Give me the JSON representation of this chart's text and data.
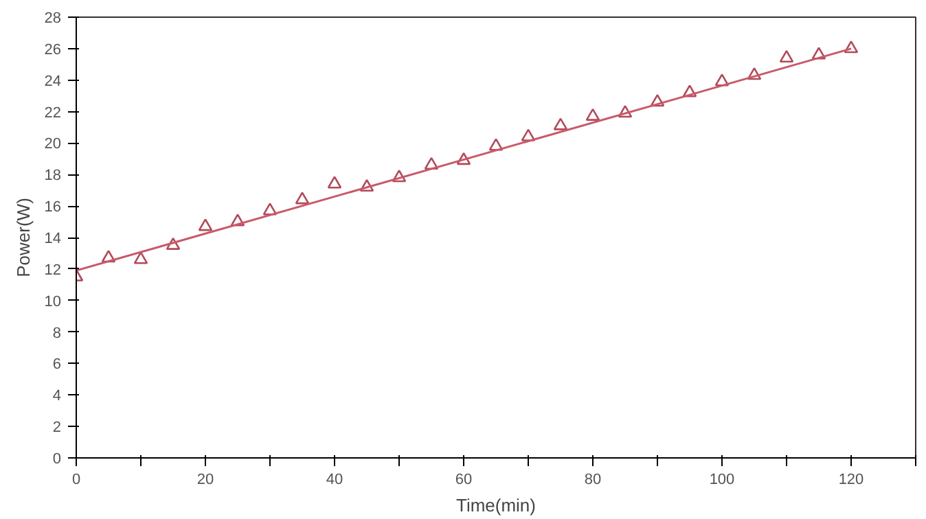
{
  "chart_data": {
    "type": "scatter",
    "xlabel": "Time(min)",
    "ylabel": "Power(W)",
    "xlim": [
      0,
      130
    ],
    "ylim": [
      0,
      28
    ],
    "xticks": [
      0,
      {
        "value": 10,
        "label": null
      },
      20,
      {
        "value": 30,
        "label": null
      },
      40,
      {
        "value": 50,
        "label": null
      },
      60,
      {
        "value": 70,
        "label": null
      },
      80,
      {
        "value": 90,
        "label": null
      },
      100,
      {
        "value": 110,
        "label": null
      },
      120,
      {
        "value": 130,
        "label": null
      }
    ],
    "yticks": [
      0,
      2,
      4,
      6,
      8,
      10,
      12,
      14,
      16,
      18,
      20,
      22,
      24,
      26,
      28
    ],
    "grid": false,
    "series": [
      {
        "marker": "triangle",
        "color": "#b04a5a",
        "x": [
          0,
          5,
          10,
          15,
          20,
          25,
          30,
          35,
          40,
          45,
          50,
          55,
          60,
          65,
          70,
          75,
          80,
          85,
          90,
          95,
          100,
          105,
          110,
          115,
          120
        ],
        "values": [
          11.5,
          12.7,
          12.6,
          13.5,
          14.7,
          15.0,
          15.7,
          16.4,
          17.4,
          17.2,
          17.8,
          18.6,
          18.9,
          19.8,
          20.4,
          21.1,
          21.7,
          21.9,
          22.6,
          23.2,
          23.9,
          24.3,
          25.4,
          25.6,
          26.0
        ]
      },
      {
        "type": "line",
        "color": "#c85a6a",
        "x": [
          0,
          120
        ],
        "values": [
          11.9,
          26.0
        ],
        "line_style": "solid"
      }
    ]
  }
}
